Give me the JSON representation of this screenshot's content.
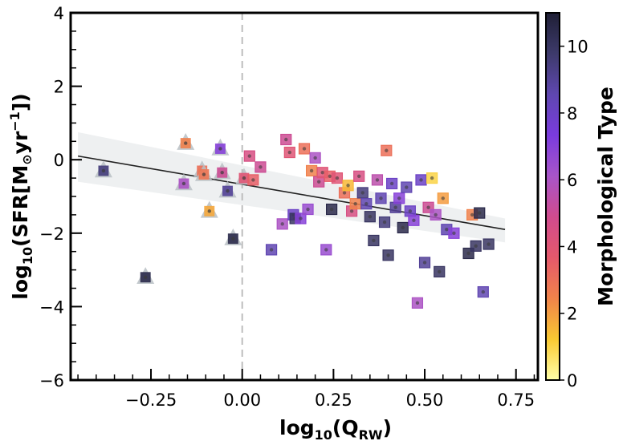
{
  "chart_data": {
    "type": "scatter",
    "title": "",
    "xlabel": {
      "main": "log",
      "sub10": "10",
      "paren": "(Q",
      "subRW": "RW",
      "close": ")"
    },
    "ylabel": {
      "main": "log",
      "sub10": "10",
      "rest": "(SFR[M",
      "sun": "⊙",
      "yr": "yr",
      "sup": "−1",
      "close": "])"
    },
    "colorbar_label": "Morphological Type",
    "xlim": [
      -0.47,
      0.81
    ],
    "ylim": [
      -6,
      4
    ],
    "xticks": [
      {
        "value": -0.25,
        "label": "−0.25"
      },
      {
        "value": 0.0,
        "label": "0.00"
      },
      {
        "value": 0.25,
        "label": "0.25"
      },
      {
        "value": 0.5,
        "label": "0.50"
      },
      {
        "value": 0.75,
        "label": "0.75"
      }
    ],
    "yticks": [
      {
        "value": -6,
        "label": "−6"
      },
      {
        "value": -4,
        "label": "−4"
      },
      {
        "value": -2,
        "label": "−2"
      },
      {
        "value": 0,
        "label": "0"
      },
      {
        "value": 2,
        "label": "2"
      },
      {
        "value": 4,
        "label": "4"
      }
    ],
    "colorbar_range": [
      0,
      11
    ],
    "colorbar_ticks": [
      {
        "value": 0,
        "label": "0"
      },
      {
        "value": 2,
        "label": "2"
      },
      {
        "value": 4,
        "label": "4"
      },
      {
        "value": 6,
        "label": "6"
      },
      {
        "value": 8,
        "label": "8"
      },
      {
        "value": 10,
        "label": "10"
      }
    ],
    "colormap": [
      "#ffffa8",
      "#f9c932",
      "#f1834a",
      "#e5596b",
      "#d04b8e",
      "#a855c9",
      "#7a3bde",
      "#5f47b0",
      "#3d3a6b",
      "#1f1f35"
    ],
    "vertical_reference_line_x": 0.0,
    "fit_line": {
      "x": [
        -0.45,
        0.72
      ],
      "y": [
        0.1,
        -1.9
      ]
    },
    "confidence_band": {
      "x": [
        -0.45,
        0.72
      ],
      "upper": [
        0.75,
        -1.6
      ],
      "lower": [
        -0.6,
        -2.25
      ]
    },
    "triangles": [
      {
        "x": -0.38,
        "y": -0.3,
        "t": 9.5
      },
      {
        "x": -0.265,
        "y": -3.2,
        "t": 10.5
      },
      {
        "x": -0.16,
        "y": -0.65,
        "t": 6
      },
      {
        "x": -0.155,
        "y": 0.45,
        "t": 2.5
      },
      {
        "x": -0.11,
        "y": -0.3,
        "t": 3
      },
      {
        "x": -0.105,
        "y": -0.4,
        "t": 2.8
      },
      {
        "x": -0.09,
        "y": -1.4,
        "t": 1.8
      },
      {
        "x": -0.06,
        "y": 0.3,
        "t": 7
      },
      {
        "x": -0.055,
        "y": -0.35,
        "t": 5
      },
      {
        "x": -0.04,
        "y": -0.85,
        "t": 9
      },
      {
        "x": -0.025,
        "y": -2.15,
        "t": 10.5
      },
      {
        "x": 0.005,
        "y": -0.5,
        "t": 4
      }
    ],
    "squares": [
      {
        "x": 0.02,
        "y": 0.1,
        "t": 4.5
      },
      {
        "x": 0.03,
        "y": -0.55,
        "t": 3.5
      },
      {
        "x": 0.05,
        "y": -0.2,
        "t": 5
      },
      {
        "x": 0.08,
        "y": -2.45,
        "t": 8.5
      },
      {
        "x": 0.11,
        "y": -1.75,
        "t": 6
      },
      {
        "x": 0.12,
        "y": 0.55,
        "t": 5
      },
      {
        "x": 0.13,
        "y": 0.2,
        "t": 4
      },
      {
        "x": 0.14,
        "y": -1.5,
        "t": 8
      },
      {
        "x": 0.145,
        "y": -1.6,
        "t": 10
      },
      {
        "x": 0.16,
        "y": -1.6,
        "t": 7
      },
      {
        "x": 0.17,
        "y": 0.3,
        "t": 3
      },
      {
        "x": 0.18,
        "y": -1.35,
        "t": 6.5
      },
      {
        "x": 0.19,
        "y": -0.3,
        "t": 2.5
      },
      {
        "x": 0.2,
        "y": 0.05,
        "t": 6
      },
      {
        "x": 0.21,
        "y": -0.6,
        "t": 5
      },
      {
        "x": 0.22,
        "y": -0.35,
        "t": 4
      },
      {
        "x": 0.23,
        "y": -2.45,
        "t": 6.5
      },
      {
        "x": 0.24,
        "y": -0.45,
        "t": 3.5
      },
      {
        "x": 0.245,
        "y": -1.35,
        "t": 10.5
      },
      {
        "x": 0.26,
        "y": -0.5,
        "t": 4
      },
      {
        "x": 0.28,
        "y": -0.9,
        "t": 3
      },
      {
        "x": 0.29,
        "y": -0.7,
        "t": 1.5
      },
      {
        "x": 0.3,
        "y": -1.4,
        "t": 4.5
      },
      {
        "x": 0.31,
        "y": -1.2,
        "t": 2.5
      },
      {
        "x": 0.32,
        "y": -0.45,
        "t": 4.5
      },
      {
        "x": 0.33,
        "y": -0.9,
        "t": 9.5
      },
      {
        "x": 0.34,
        "y": -1.2,
        "t": 8.5
      },
      {
        "x": 0.35,
        "y": -1.55,
        "t": 10
      },
      {
        "x": 0.36,
        "y": -2.2,
        "t": 10
      },
      {
        "x": 0.37,
        "y": -0.55,
        "t": 5.5
      },
      {
        "x": 0.38,
        "y": -1.05,
        "t": 8.5
      },
      {
        "x": 0.39,
        "y": -1.7,
        "t": 9.5
      },
      {
        "x": 0.395,
        "y": 0.25,
        "t": 3
      },
      {
        "x": 0.4,
        "y": -2.6,
        "t": 10
      },
      {
        "x": 0.41,
        "y": -0.65,
        "t": 8
      },
      {
        "x": 0.42,
        "y": -1.3,
        "t": 9
      },
      {
        "x": 0.43,
        "y": -1.05,
        "t": 7
      },
      {
        "x": 0.44,
        "y": -1.85,
        "t": 10.5
      },
      {
        "x": 0.45,
        "y": -0.75,
        "t": 8.5
      },
      {
        "x": 0.46,
        "y": -1.4,
        "t": 8
      },
      {
        "x": 0.47,
        "y": -1.65,
        "t": 7
      },
      {
        "x": 0.48,
        "y": -3.9,
        "t": 6
      },
      {
        "x": 0.49,
        "y": -0.55,
        "t": 8
      },
      {
        "x": 0.5,
        "y": -2.8,
        "t": 9
      },
      {
        "x": 0.51,
        "y": -1.3,
        "t": 5
      },
      {
        "x": 0.52,
        "y": -0.5,
        "t": 1
      },
      {
        "x": 0.53,
        "y": -1.5,
        "t": 6
      },
      {
        "x": 0.54,
        "y": -3.05,
        "t": 10
      },
      {
        "x": 0.55,
        "y": -1.05,
        "t": 2
      },
      {
        "x": 0.56,
        "y": -1.9,
        "t": 8.5
      },
      {
        "x": 0.58,
        "y": -2.0,
        "t": 7
      },
      {
        "x": 0.62,
        "y": -2.55,
        "t": 10.5
      },
      {
        "x": 0.63,
        "y": -1.5,
        "t": 2.5
      },
      {
        "x": 0.64,
        "y": -2.35,
        "t": 10
      },
      {
        "x": 0.65,
        "y": -1.45,
        "t": 10.5
      },
      {
        "x": 0.66,
        "y": -3.6,
        "t": 8.5
      },
      {
        "x": 0.675,
        "y": -2.3,
        "t": 10
      }
    ]
  }
}
